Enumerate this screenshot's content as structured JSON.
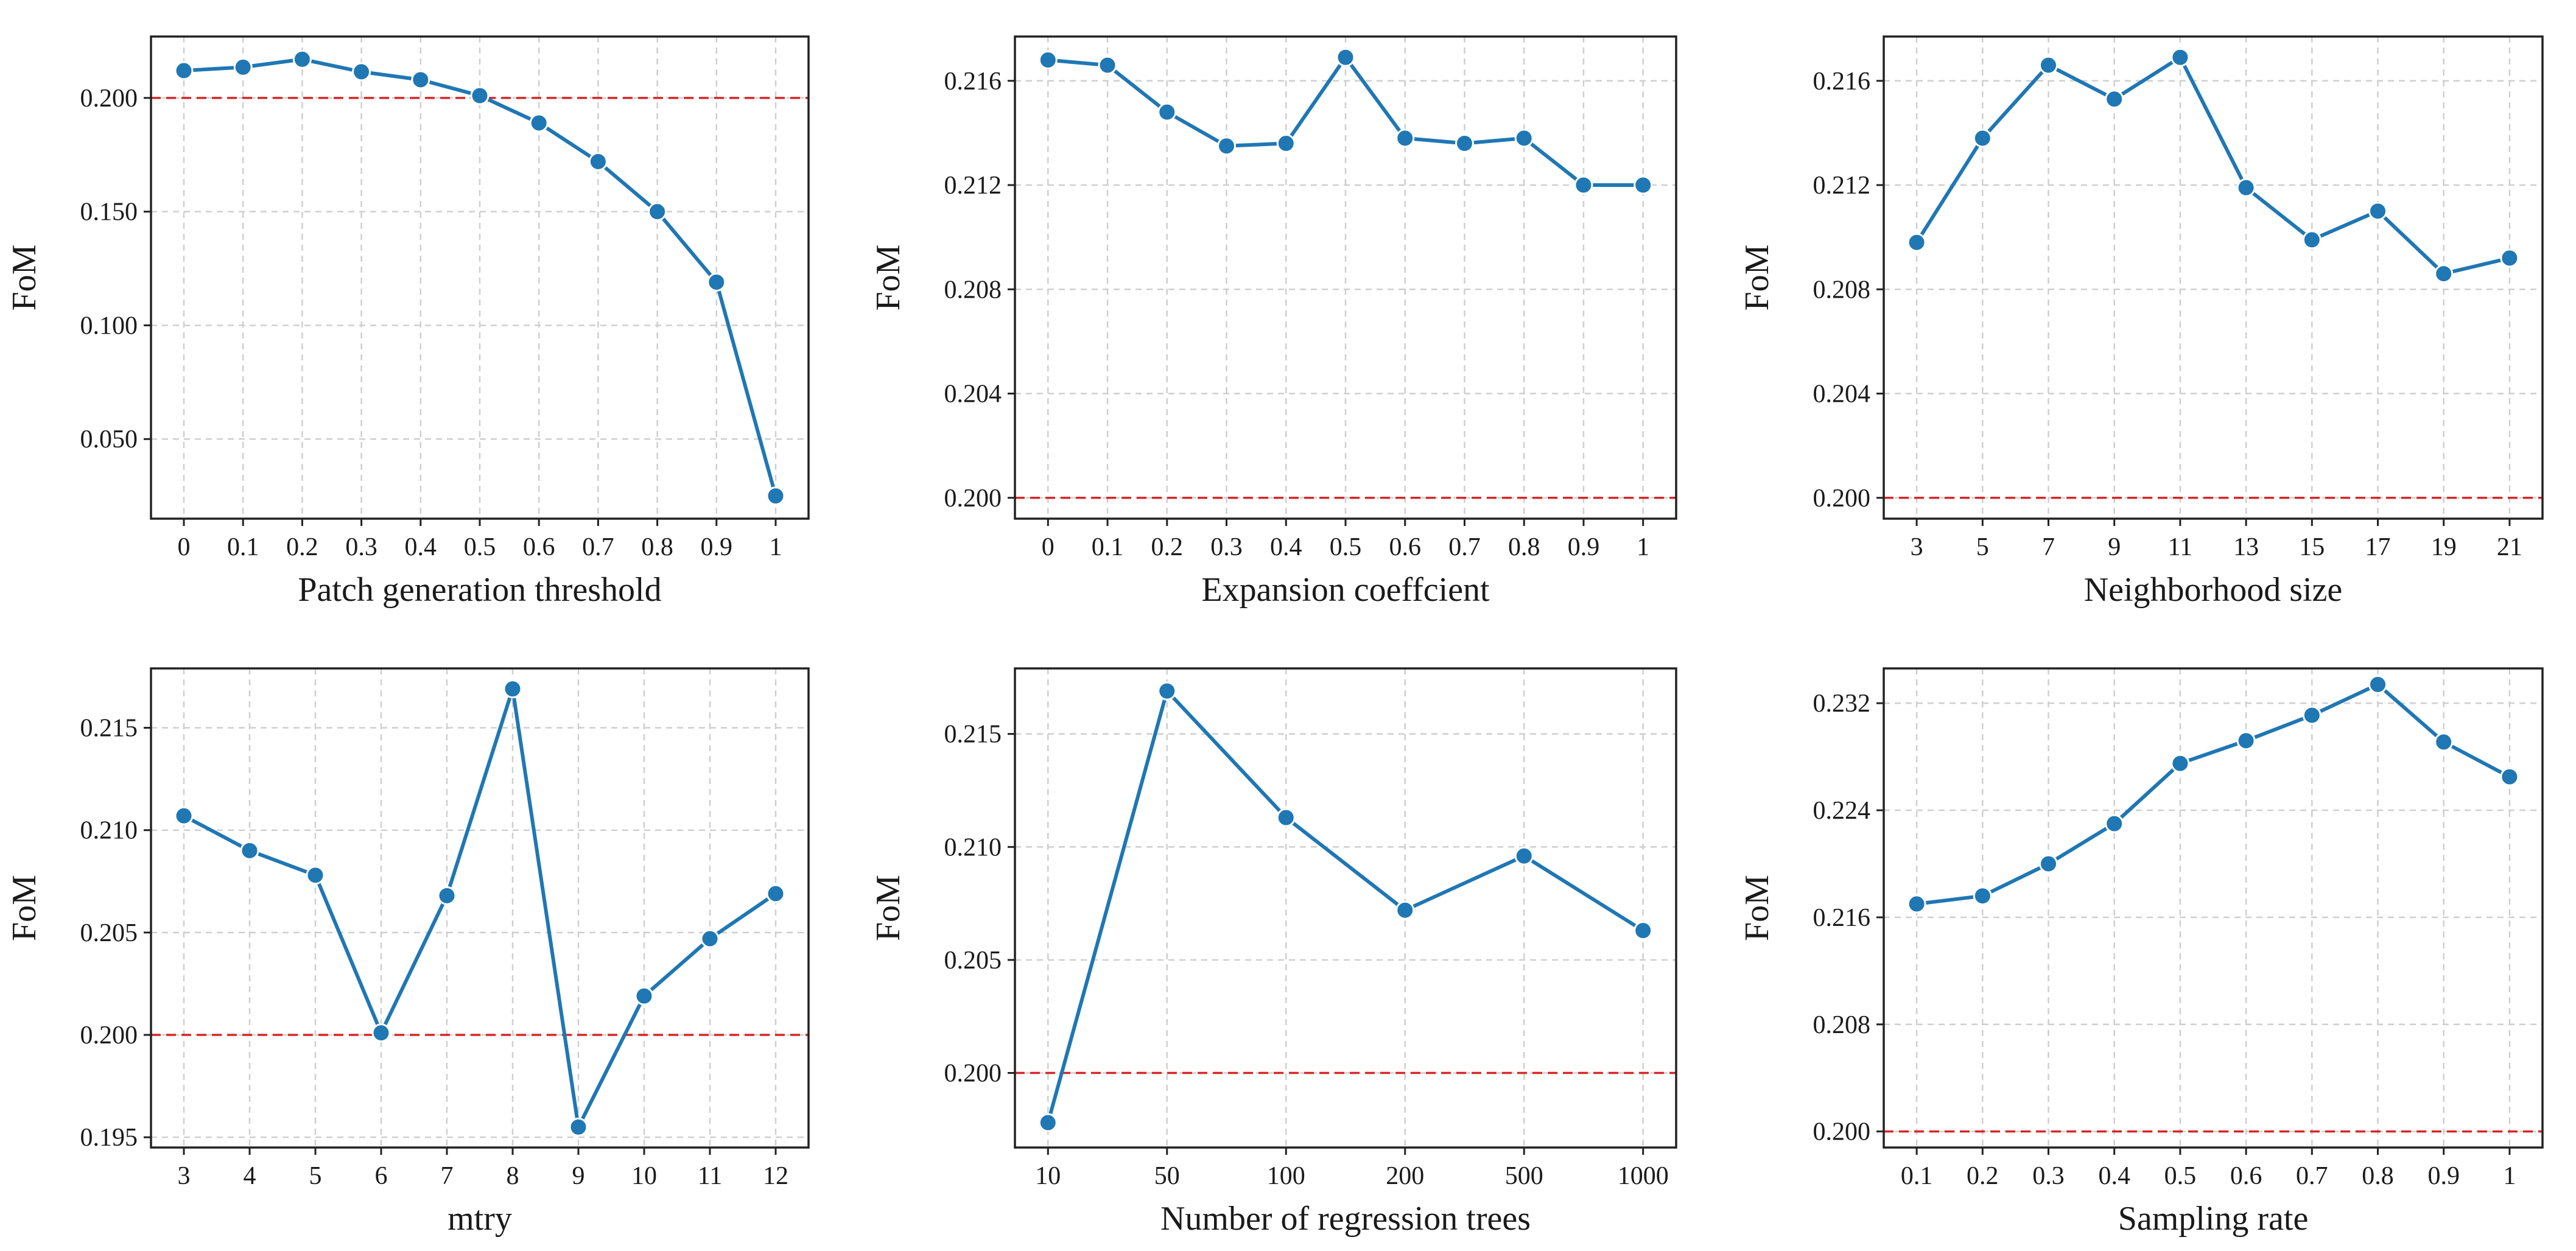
{
  "colors": {
    "series": "#1f77b4",
    "reference": "#d62728",
    "grid": "#cfcfcf"
  },
  "chart_data": [
    {
      "type": "line",
      "title": "",
      "xlabel": "Patch generation threshold",
      "ylabel": "FoM",
      "categories": [
        "0",
        "0.1",
        "0.2",
        "0.3",
        "0.4",
        "0.5",
        "0.6",
        "0.7",
        "0.8",
        "0.9",
        "1"
      ],
      "values": [
        0.212,
        0.2135,
        0.217,
        0.2115,
        0.208,
        0.201,
        0.189,
        0.172,
        0.15,
        0.119,
        0.025
      ],
      "ylim": [
        0.015,
        0.227
      ],
      "yticks": [
        0.05,
        0.1,
        0.15,
        0.2
      ],
      "ytick_labels": [
        "0.050",
        "0.100",
        "0.150",
        "0.200"
      ],
      "reference_line": 0.2,
      "grid": true
    },
    {
      "type": "line",
      "title": "",
      "xlabel": "Expansion coeffcient",
      "ylabel": "FoM",
      "categories": [
        "0",
        "0.1",
        "0.2",
        "0.3",
        "0.4",
        "0.5",
        "0.6",
        "0.7",
        "0.8",
        "0.9",
        "1"
      ],
      "values": [
        0.2168,
        0.2166,
        0.2148,
        0.2135,
        0.2136,
        0.2169,
        0.2138,
        0.2136,
        0.2138,
        0.212,
        0.212
      ],
      "ylim": [
        0.1992,
        0.2177
      ],
      "yticks": [
        0.2,
        0.204,
        0.208,
        0.212,
        0.216
      ],
      "ytick_labels": [
        "0.200",
        "0.204",
        "0.208",
        "0.212",
        "0.216"
      ],
      "reference_line": 0.2,
      "grid": true
    },
    {
      "type": "line",
      "title": "",
      "xlabel": "Neighborhood size",
      "ylabel": "FoM",
      "categories": [
        "3",
        "5",
        "7",
        "9",
        "11",
        "13",
        "15",
        "17",
        "19",
        "21"
      ],
      "values": [
        0.2098,
        0.2138,
        0.2166,
        0.2153,
        0.2169,
        0.2119,
        0.2099,
        0.211,
        0.2086,
        0.2092
      ],
      "ylim": [
        0.1992,
        0.2177
      ],
      "yticks": [
        0.2,
        0.204,
        0.208,
        0.212,
        0.216
      ],
      "ytick_labels": [
        "0.200",
        "0.204",
        "0.208",
        "0.212",
        "0.216"
      ],
      "reference_line": 0.2,
      "grid": true
    },
    {
      "type": "line",
      "title": "",
      "xlabel": "mtry",
      "ylabel": "FoM",
      "categories": [
        "3",
        "4",
        "5",
        "6",
        "7",
        "8",
        "9",
        "10",
        "11",
        "12"
      ],
      "values": [
        0.2107,
        0.209,
        0.2078,
        0.2001,
        0.2068,
        0.2169,
        0.1955,
        0.2019,
        0.2047,
        0.2069
      ],
      "ylim": [
        0.1945,
        0.2179
      ],
      "yticks": [
        0.195,
        0.2,
        0.205,
        0.21,
        0.215
      ],
      "ytick_labels": [
        "0.195",
        "0.200",
        "0.205",
        "0.210",
        "0.215"
      ],
      "reference_line": 0.2,
      "grid": true
    },
    {
      "type": "line",
      "title": "",
      "xlabel": "Number of regression trees",
      "ylabel": "FoM",
      "categories": [
        "10",
        "50",
        "100",
        "200",
        "500",
        "1000"
      ],
      "values": [
        0.1978,
        0.2169,
        0.2113,
        0.2072,
        0.2096,
        0.2063
      ],
      "ylim": [
        0.1967,
        0.2179
      ],
      "yticks": [
        0.2,
        0.205,
        0.21,
        0.215
      ],
      "ytick_labels": [
        "0.200",
        "0.205",
        "0.210",
        "0.215"
      ],
      "reference_line": 0.2,
      "grid": true
    },
    {
      "type": "line",
      "title": "",
      "xlabel": "Sampling rate",
      "ylabel": "FoM",
      "categories": [
        "0.1",
        "0.2",
        "0.3",
        "0.4",
        "0.5",
        "0.6",
        "0.7",
        "0.8",
        "0.9",
        "1"
      ],
      "values": [
        0.217,
        0.2176,
        0.22,
        0.223,
        0.2275,
        0.2292,
        0.2311,
        0.2334,
        0.2291,
        0.2265
      ],
      "ylim": [
        0.1988,
        0.2346
      ],
      "yticks": [
        0.2,
        0.208,
        0.216,
        0.224,
        0.232
      ],
      "ytick_labels": [
        "0.200",
        "0.208",
        "0.216",
        "0.224",
        "0.232"
      ],
      "reference_line": 0.2,
      "grid": true
    }
  ]
}
